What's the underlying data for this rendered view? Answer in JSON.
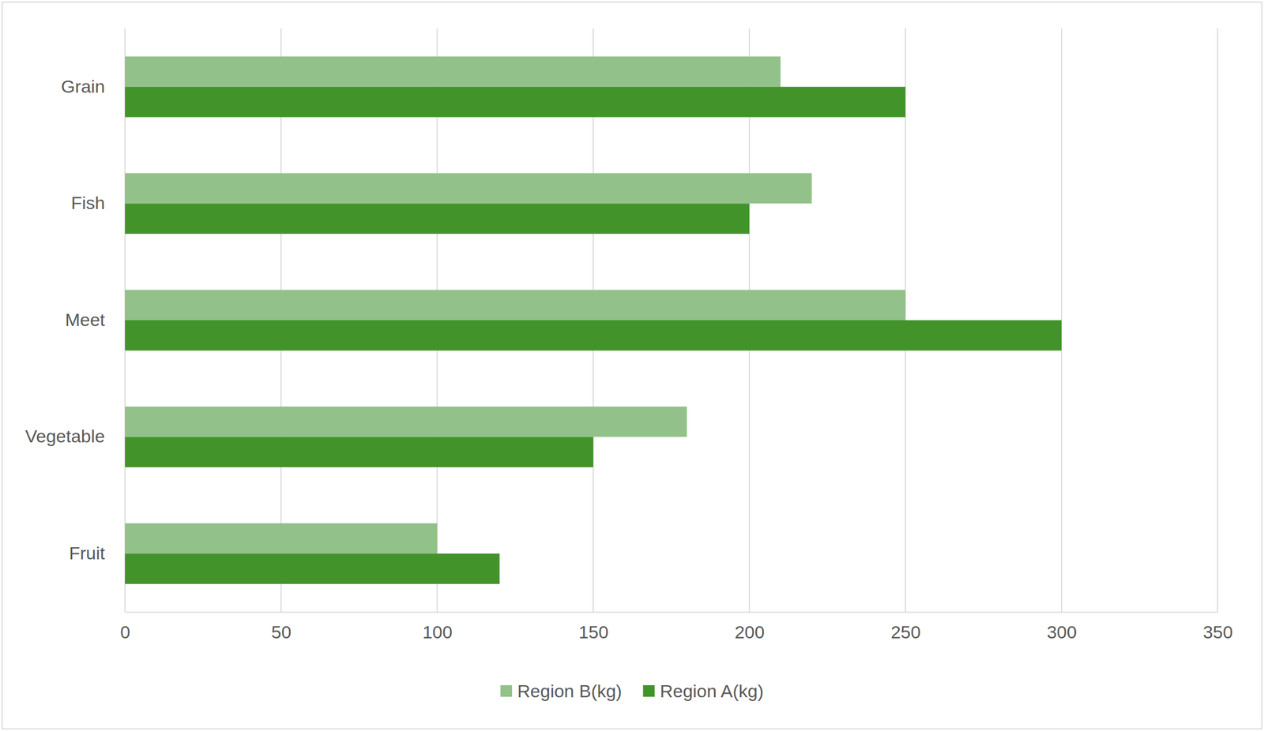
{
  "chart_data": {
    "type": "bar",
    "orientation": "horizontal",
    "categories": [
      "Grain",
      "Fish",
      "Meet",
      "Vegetable",
      "Fruit"
    ],
    "series": [
      {
        "name": "Region B(kg)",
        "color": "#93c18a",
        "values": [
          210,
          220,
          250,
          180,
          100
        ]
      },
      {
        "name": "Region A(kg)",
        "color": "#43932b",
        "values": [
          250,
          200,
          300,
          150,
          120
        ]
      }
    ],
    "xlim": [
      0,
      350
    ],
    "xticks": [
      0,
      50,
      100,
      150,
      200,
      250,
      300,
      350
    ],
    "grid": true,
    "legend": "bottom"
  }
}
